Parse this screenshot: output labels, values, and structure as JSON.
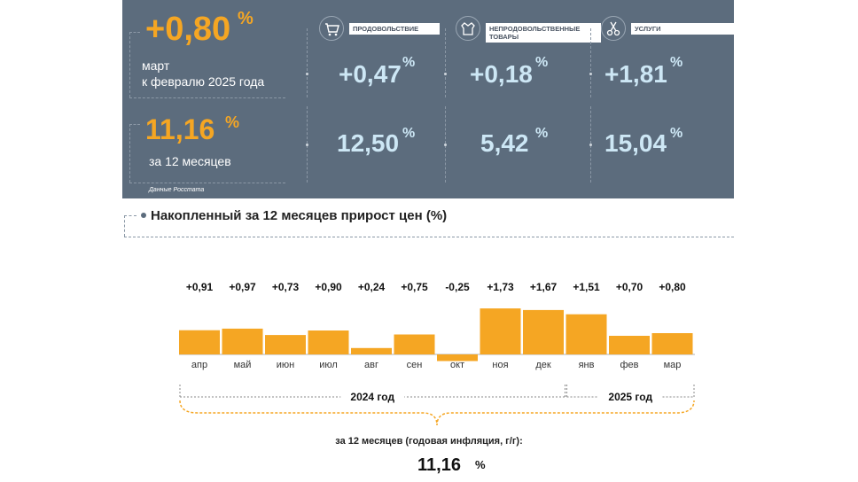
{
  "summary": {
    "monthly": {
      "value": "+0,80",
      "unit": "%",
      "line1": "март",
      "line2": "к февралю 2025 года"
    },
    "annual": {
      "value": "11,16",
      "unit": "%",
      "label": "за 12 месяцев"
    },
    "source": "Данные Росстата"
  },
  "categories": [
    {
      "name": "ПРОДОВОЛЬСТВИЕ",
      "icon": "shopping-cart-icon",
      "monthly": "+0,47",
      "annual": "12,50",
      "unit": "%"
    },
    {
      "name": "НЕПРОДОВОЛЬСТВЕННЫЕ ТОВАРЫ",
      "icon": "jacket-icon",
      "monthly": "+0,18",
      "annual": "5,42",
      "unit": "%"
    },
    {
      "name": "УСЛУГИ",
      "icon": "scissors-icon",
      "monthly": "+1,81",
      "annual": "15,04",
      "unit": "%"
    }
  ],
  "section_title": "Накопленный за 12 месяцев прирост цен (%)",
  "chart_data": {
    "type": "bar",
    "categories": [
      "апр",
      "май",
      "июн",
      "июл",
      "авг",
      "сен",
      "окт",
      "ноя",
      "дек",
      "янв",
      "фев",
      "мар"
    ],
    "values": [
      0.91,
      0.97,
      0.73,
      0.9,
      0.24,
      0.75,
      -0.25,
      1.73,
      1.67,
      1.51,
      0.7,
      0.8
    ],
    "value_labels": [
      "+0,91",
      "+0,97",
      "+0,73",
      "+0,90",
      "+0,24",
      "+0,75",
      "-0,25",
      "+1,73",
      "+1,67",
      "+1,51",
      "+0,70",
      "+0,80"
    ],
    "groups": [
      {
        "label": "2024 год",
        "from": 0,
        "to": 8
      },
      {
        "label": "2025 год",
        "from": 9,
        "to": 11
      }
    ],
    "bar_color": "#f5a623",
    "grid": false
  },
  "footer": {
    "caption": "за 12 месяцев (годовая инфляция, г/г):",
    "value": "11,16",
    "unit": "%"
  },
  "colors": {
    "panel": "#5c6c7d",
    "accent": "#f5a623",
    "value_light": "#cde7f5"
  }
}
